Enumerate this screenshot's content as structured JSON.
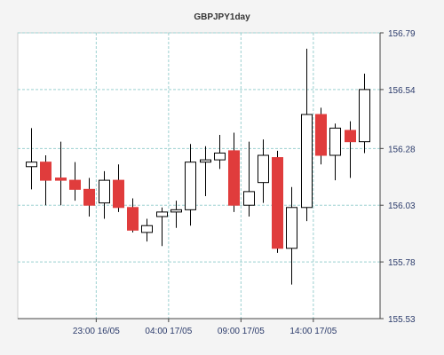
{
  "chart_data": {
    "type": "candlestick",
    "title": "GBPJPY1day",
    "xlabel": "",
    "ylabel": "",
    "ylim": [
      155.53,
      156.79
    ],
    "grid": true,
    "y_ticks": [
      "156.79",
      "156.54",
      "156.28",
      "156.03",
      "155.78",
      "155.53"
    ],
    "x_ticks": [
      {
        "label": "23:00 16/05",
        "index": 4.5
      },
      {
        "label": "04:00 17/05",
        "index": 9.5
      },
      {
        "label": "09:00 17/05",
        "index": 14.5
      },
      {
        "label": "14:00 17/05",
        "index": 19.5
      }
    ],
    "candles": [
      {
        "open": 156.2,
        "high": 156.37,
        "low": 156.1,
        "close": 156.22
      },
      {
        "open": 156.22,
        "high": 156.25,
        "low": 156.03,
        "close": 156.14
      },
      {
        "open": 156.15,
        "high": 156.31,
        "low": 156.03,
        "close": 156.14
      },
      {
        "open": 156.14,
        "high": 156.22,
        "low": 156.05,
        "close": 156.1
      },
      {
        "open": 156.1,
        "high": 156.15,
        "low": 155.98,
        "close": 156.03
      },
      {
        "open": 156.04,
        "high": 156.18,
        "low": 155.97,
        "close": 156.14
      },
      {
        "open": 156.14,
        "high": 156.21,
        "low": 156.0,
        "close": 156.02
      },
      {
        "open": 156.02,
        "high": 156.06,
        "low": 155.91,
        "close": 155.92
      },
      {
        "open": 155.91,
        "high": 155.97,
        "low": 155.87,
        "close": 155.94
      },
      {
        "open": 155.98,
        "high": 156.02,
        "low": 155.85,
        "close": 156.0
      },
      {
        "open": 156.0,
        "high": 156.05,
        "low": 155.93,
        "close": 156.01
      },
      {
        "open": 156.01,
        "high": 156.3,
        "low": 155.94,
        "close": 156.22
      },
      {
        "open": 156.22,
        "high": 156.29,
        "low": 156.07,
        "close": 156.23
      },
      {
        "open": 156.23,
        "high": 156.34,
        "low": 156.19,
        "close": 156.26
      },
      {
        "open": 156.27,
        "high": 156.35,
        "low": 156.0,
        "close": 156.03
      },
      {
        "open": 156.03,
        "high": 156.31,
        "low": 155.98,
        "close": 156.09
      },
      {
        "open": 156.13,
        "high": 156.32,
        "low": 156.04,
        "close": 156.25
      },
      {
        "open": 156.24,
        "high": 156.27,
        "low": 155.82,
        "close": 155.84
      },
      {
        "open": 155.84,
        "high": 156.11,
        "low": 155.68,
        "close": 156.02
      },
      {
        "open": 156.02,
        "high": 156.72,
        "low": 155.96,
        "close": 156.43
      },
      {
        "open": 156.43,
        "high": 156.46,
        "low": 156.21,
        "close": 156.25
      },
      {
        "open": 156.25,
        "high": 156.39,
        "low": 156.14,
        "close": 156.37
      },
      {
        "open": 156.36,
        "high": 156.4,
        "low": 156.15,
        "close": 156.31
      },
      {
        "open": 156.31,
        "high": 156.61,
        "low": 156.26,
        "close": 156.54
      }
    ],
    "colors": {
      "up_fill": "#ffffff",
      "down_fill": "#e03c3c",
      "candle_stroke": "#000000",
      "grid": "#9bd0d0",
      "axis": "#444444",
      "tick_text": "#2a3a6a",
      "background": "#ffffff",
      "outer_background": "#f4f4f4"
    }
  }
}
